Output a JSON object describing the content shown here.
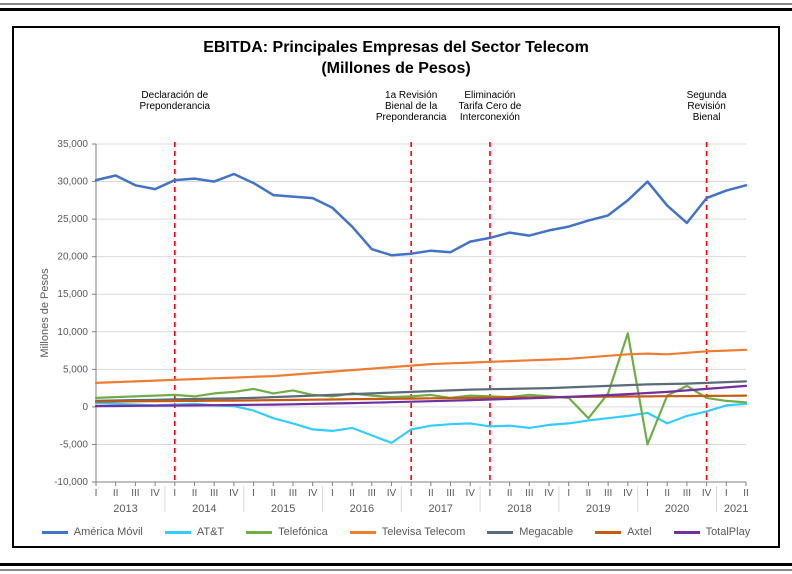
{
  "title_line1": "EBITDA: Principales Empresas del Sector Telecom",
  "title_line2": "(Millones de Pesos)",
  "y_axis_label": "Millones de Pesos",
  "chart": {
    "type": "line",
    "background_color": "#ffffff",
    "grid_color": "#d9d9d9",
    "axis_color": "#808080",
    "ylim": [
      -10000,
      35000
    ],
    "ytick_step": 5000,
    "yticks": [
      -10000,
      -5000,
      0,
      5000,
      10000,
      15000,
      20000,
      25000,
      30000,
      35000
    ],
    "ytick_labels": [
      "-10,000",
      "-5,000",
      "0",
      "5,000",
      "10,000",
      "15,000",
      "20,000",
      "25,000",
      "30,000",
      "35,000"
    ],
    "years": [
      {
        "label": "2013",
        "quarters": [
          "I",
          "II",
          "III",
          "IV"
        ]
      },
      {
        "label": "2014",
        "quarters": [
          "I",
          "II",
          "III",
          "IV"
        ]
      },
      {
        "label": "2015",
        "quarters": [
          "I",
          "II",
          "III",
          "IV"
        ]
      },
      {
        "label": "2016",
        "quarters": [
          "I",
          "II",
          "III",
          "IV"
        ]
      },
      {
        "label": "2017",
        "quarters": [
          "I",
          "II",
          "III",
          "IV"
        ]
      },
      {
        "label": "2018",
        "quarters": [
          "I",
          "II",
          "III",
          "IV"
        ]
      },
      {
        "label": "2019",
        "quarters": [
          "I",
          "II",
          "III",
          "IV"
        ]
      },
      {
        "label": "2020",
        "quarters": [
          "I",
          "II",
          "III",
          "IV"
        ]
      },
      {
        "label": "2021",
        "quarters": [
          "I",
          "II"
        ]
      }
    ],
    "annotations": [
      {
        "x_index": 4,
        "lines": [
          "Declaración de",
          "Preponderancia"
        ]
      },
      {
        "x_index": 16,
        "lines": [
          "1a Revisión",
          "Bienal de la",
          "Preponderancia"
        ]
      },
      {
        "x_index": 20,
        "lines": [
          "Eliminación",
          "Tarifa Cero de",
          "Interconexión"
        ]
      },
      {
        "x_index": 31,
        "lines": [
          "Segunda",
          "Revisión",
          "Bienal"
        ]
      }
    ],
    "annotation_line_color": "#ff0000",
    "annotation_dash": "5,4",
    "series": [
      {
        "name": "América Móvil",
        "color": "#4472c4",
        "width": 2.5,
        "values": [
          30200,
          30800,
          29500,
          29000,
          30200,
          30400,
          30000,
          31000,
          29800,
          28200,
          28000,
          27800,
          26500,
          24000,
          21000,
          20200,
          20400,
          20800,
          20600,
          22000,
          22500,
          23200,
          22800,
          23500,
          24000,
          24800,
          25500,
          27500,
          30000,
          26800,
          24500,
          27800,
          28800,
          29500
        ]
      },
      {
        "name": "AT&T",
        "color": "#33ccff",
        "width": 2.2,
        "values": [
          500,
          400,
          300,
          200,
          300,
          400,
          200,
          100,
          -500,
          -1500,
          -2200,
          -3000,
          -3200,
          -2800,
          -3800,
          -4800,
          -3000,
          -2500,
          -2300,
          -2200,
          -2600,
          -2500,
          -2800,
          -2400,
          -2200,
          -1800,
          -1500,
          -1200,
          -800,
          -2200,
          -1200,
          -600,
          200,
          400
        ]
      },
      {
        "name": "Telefónica",
        "color": "#70ad47",
        "width": 2.2,
        "values": [
          1200,
          1300,
          1400,
          1500,
          1600,
          1400,
          1800,
          2000,
          2400,
          1800,
          2200,
          1600,
          1400,
          1800,
          1500,
          1300,
          1400,
          1600,
          1200,
          1500,
          1400,
          1300,
          1600,
          1400,
          1200,
          -1500,
          1800,
          9800,
          -5000,
          1500,
          2800,
          1200,
          800,
          600
        ]
      },
      {
        "name": "Televisa Telecom",
        "color": "#ed7d31",
        "width": 2.2,
        "values": [
          3200,
          3300,
          3400,
          3500,
          3600,
          3700,
          3800,
          3900,
          4000,
          4100,
          4300,
          4500,
          4700,
          4900,
          5100,
          5300,
          5500,
          5700,
          5800,
          5900,
          6000,
          6100,
          6200,
          6300,
          6400,
          6600,
          6800,
          7000,
          7100,
          7000,
          7200,
          7400,
          7500,
          7600
        ]
      },
      {
        "name": "Megacable",
        "color": "#5b6b7a",
        "width": 2.2,
        "values": [
          800,
          850,
          900,
          950,
          1000,
          1050,
          1100,
          1150,
          1200,
          1300,
          1400,
          1500,
          1600,
          1700,
          1800,
          1900,
          2000,
          2100,
          2200,
          2300,
          2350,
          2400,
          2450,
          2500,
          2600,
          2700,
          2800,
          2900,
          3000,
          3050,
          3100,
          3200,
          3300,
          3400
        ]
      },
      {
        "name": "Axtel",
        "color": "#c55a11",
        "width": 2.2,
        "values": [
          700,
          720,
          740,
          760,
          780,
          800,
          820,
          840,
          870,
          900,
          930,
          960,
          990,
          1020,
          1050,
          1080,
          1110,
          1140,
          1170,
          1200,
          1230,
          1260,
          1280,
          1300,
          1320,
          1340,
          1360,
          1380,
          1400,
          1420,
          1440,
          1460,
          1480,
          1500
        ]
      },
      {
        "name": "TotalPlay",
        "color": "#7030a0",
        "width": 2.2,
        "values": [
          100,
          120,
          140,
          160,
          180,
          200,
          220,
          250,
          280,
          310,
          350,
          400,
          450,
          500,
          560,
          620,
          690,
          760,
          830,
          900,
          980,
          1060,
          1150,
          1240,
          1340,
          1450,
          1570,
          1700,
          1850,
          2000,
          2200,
          2400,
          2600,
          2800
        ]
      }
    ]
  },
  "legend_labels": {
    "america_movil": "América Móvil",
    "att": "AT&T",
    "telefonica": "Telefónica",
    "televisa": "Televisa Telecom",
    "megacable": "Megacable",
    "axtel": "Axtel",
    "totalplay": "TotalPlay"
  }
}
